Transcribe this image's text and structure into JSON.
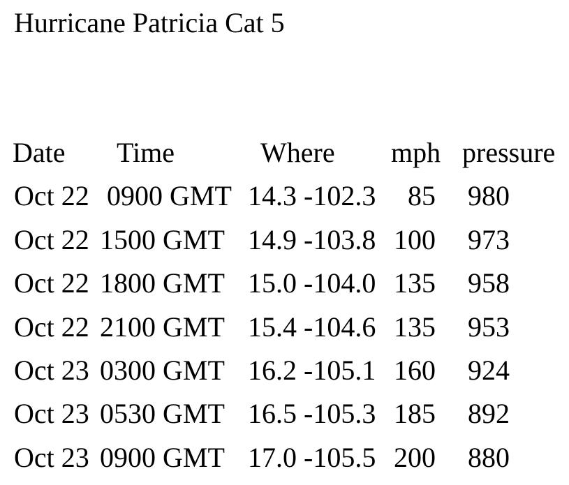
{
  "title": "Hurricane Patricia Cat 5",
  "colors": {
    "background": "#ffffff",
    "text": "#000000"
  },
  "table": {
    "headers": {
      "date": "Date",
      "time": "Time",
      "where": "Where",
      "mph": "mph",
      "pressure": "pressure"
    },
    "rows": [
      {
        "date": "Oct 22",
        "time": " 0900 GMT",
        "where": "14.3 -102.3",
        "mph": "85",
        "pressure": "980"
      },
      {
        "date": "Oct 22",
        "time": "1500 GMT",
        "where": "14.9 -103.8",
        "mph": "100",
        "pressure": "973"
      },
      {
        "date": "Oct 22",
        "time": "1800 GMT",
        "where": "15.0 -104.0",
        "mph": "135",
        "pressure": "958"
      },
      {
        "date": "Oct 22",
        "time": "2100 GMT",
        "where": "15.4 -104.6",
        "mph": "135",
        "pressure": "953"
      },
      {
        "date": "Oct 23",
        "time": "0300 GMT",
        "where": "16.2 -105.1",
        "mph": "160",
        "pressure": "924"
      },
      {
        "date": "Oct 23",
        "time": "0530 GMT",
        "where": "16.5 -105.3",
        "mph": "185",
        "pressure": "892"
      },
      {
        "date": "Oct 23",
        "time": "0900 GMT",
        "where": "17.0 -105.5",
        "mph": "200",
        "pressure": "880"
      }
    ]
  }
}
